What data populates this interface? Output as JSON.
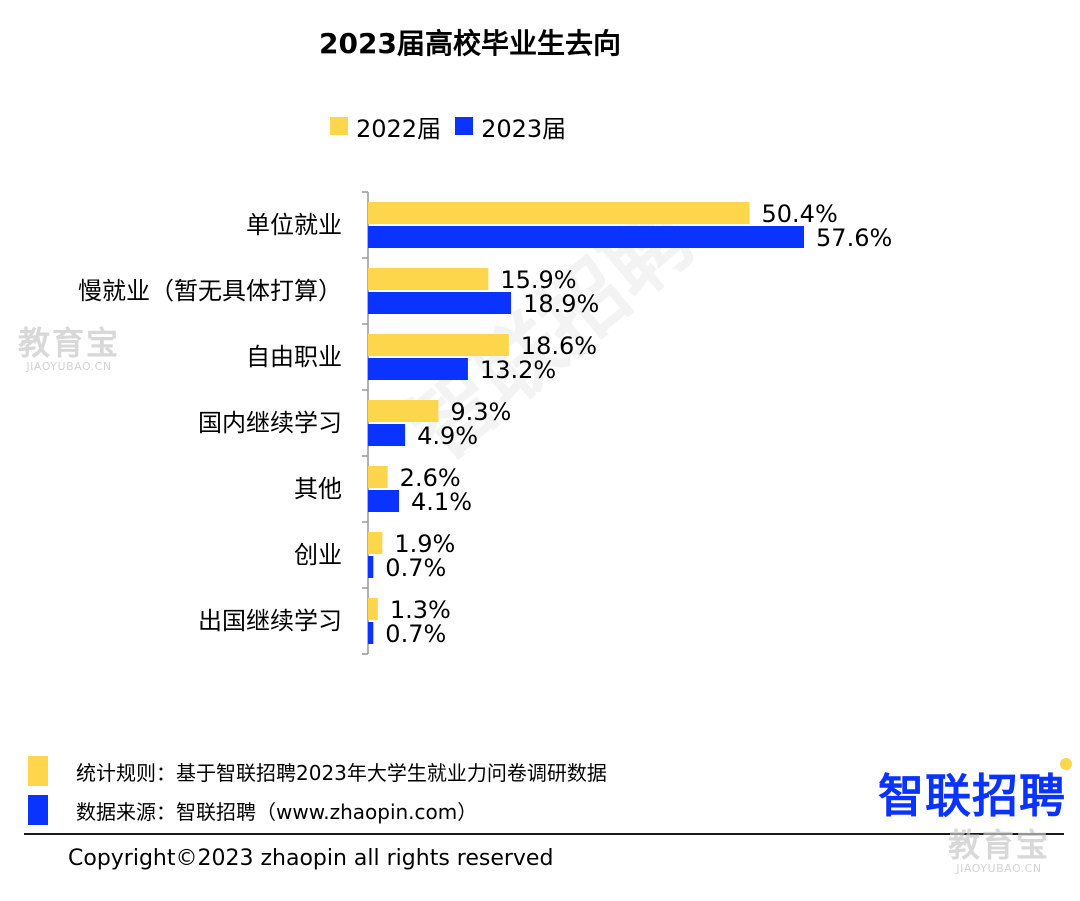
{
  "title": "2023届高校毕业生去向",
  "colors": {
    "s2022": "#FDD64C",
    "s2023": "#0A33FF",
    "axis": "#999999",
    "brand": "#0A33FF",
    "brand_dot": "#FDD64C"
  },
  "chart_data": {
    "type": "bar",
    "orientation": "horizontal",
    "title": "2023届高校毕业生去向",
    "categories": [
      "单位就业",
      "慢就业（暂无具体打算）",
      "自由职业",
      "国内继续学习",
      "其他",
      "创业",
      "出国继续学习"
    ],
    "series": [
      {
        "name": "2022届",
        "values": [
          50.4,
          15.9,
          18.6,
          9.3,
          2.6,
          1.9,
          1.3
        ],
        "labels": [
          "50.4%",
          "15.9%",
          "18.6%",
          "9.3%",
          "2.6%",
          "1.9%",
          "1.3%"
        ]
      },
      {
        "name": "2023届",
        "values": [
          57.6,
          18.9,
          13.2,
          4.9,
          4.1,
          0.7,
          0.7
        ],
        "labels": [
          "57.6%",
          "18.9%",
          "13.2%",
          "4.9%",
          "4.1%",
          "0.7%",
          "0.7%"
        ]
      }
    ],
    "unit": "%",
    "legend": "top",
    "grid": false
  },
  "legend": {
    "items": [
      "2022届",
      "2023届"
    ]
  },
  "footnotes": {
    "rule": "统计规则：基于智联招聘2023年大学生就业力问卷调研数据",
    "source": "数据来源：智联招聘（www.zhaopin.com）"
  },
  "brand": {
    "logo_text": "智联招聘"
  },
  "copyright": "Copyright©2023 zhaopin all rights reserved",
  "watermarks": {
    "diagonal": "智联招聘",
    "site_cn": "教育宝",
    "site_en": "JIAOYUBAO.CN"
  }
}
